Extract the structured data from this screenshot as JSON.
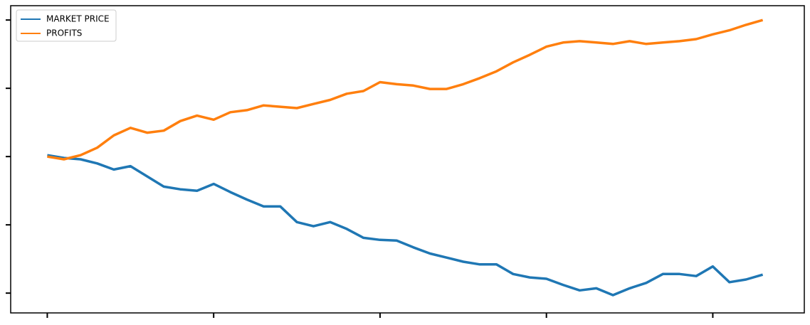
{
  "chart_data": {
    "type": "line",
    "x": [
      0,
      0.1,
      0.2,
      0.3,
      0.4,
      0.5,
      0.6,
      0.7,
      0.8,
      0.9,
      1.0,
      1.1,
      1.2,
      1.3,
      1.4,
      1.5,
      1.6,
      1.7,
      1.8,
      1.9,
      2.0,
      2.1,
      2.2,
      2.3,
      2.4,
      2.5,
      2.6,
      2.7,
      2.8,
      2.9,
      3.0,
      3.1,
      3.2,
      3.3,
      3.4,
      3.5,
      3.6,
      3.7,
      3.8,
      3.9,
      4.0,
      4.1,
      4.2,
      4.3
    ],
    "series": [
      {
        "name": "MARKET PRICE",
        "color": "#1f77b4",
        "values": [
          0.02,
          -0.02,
          -0.04,
          -0.1,
          -0.19,
          -0.14,
          -0.29,
          -0.44,
          -0.48,
          -0.5,
          -0.4,
          -0.52,
          -0.63,
          -0.73,
          -0.73,
          -0.96,
          -1.02,
          -0.96,
          -1.06,
          -1.19,
          -1.22,
          -1.23,
          -1.33,
          -1.42,
          -1.48,
          -1.54,
          -1.58,
          -1.58,
          -1.72,
          -1.77,
          -1.79,
          -1.88,
          -1.96,
          -1.93,
          -2.03,
          -1.93,
          -1.85,
          -1.72,
          -1.72,
          -1.75,
          -1.61,
          -1.84,
          -1.8,
          -1.73
        ]
      },
      {
        "name": "PROFITS",
        "color": "#ff7f0e",
        "values": [
          0,
          -0.04,
          0.02,
          0.13,
          0.31,
          0.42,
          0.35,
          0.38,
          0.52,
          0.6,
          0.54,
          0.65,
          0.68,
          0.75,
          0.73,
          0.71,
          0.77,
          0.83,
          0.92,
          0.96,
          1.09,
          1.06,
          1.04,
          0.99,
          0.99,
          1.06,
          1.15,
          1.25,
          1.38,
          1.49,
          1.61,
          1.67,
          1.69,
          1.67,
          1.65,
          1.69,
          1.65,
          1.67,
          1.69,
          1.72,
          1.79,
          1.85,
          1.93,
          2.0
        ]
      }
    ],
    "xlim": [
      -0.22,
      4.55
    ],
    "ylim": [
      -2.29,
      2.21
    ],
    "xticks": [
      0,
      1,
      2,
      3,
      4
    ],
    "yticks": [
      -2,
      -1,
      0,
      1,
      2
    ],
    "legend": "upper-left"
  }
}
